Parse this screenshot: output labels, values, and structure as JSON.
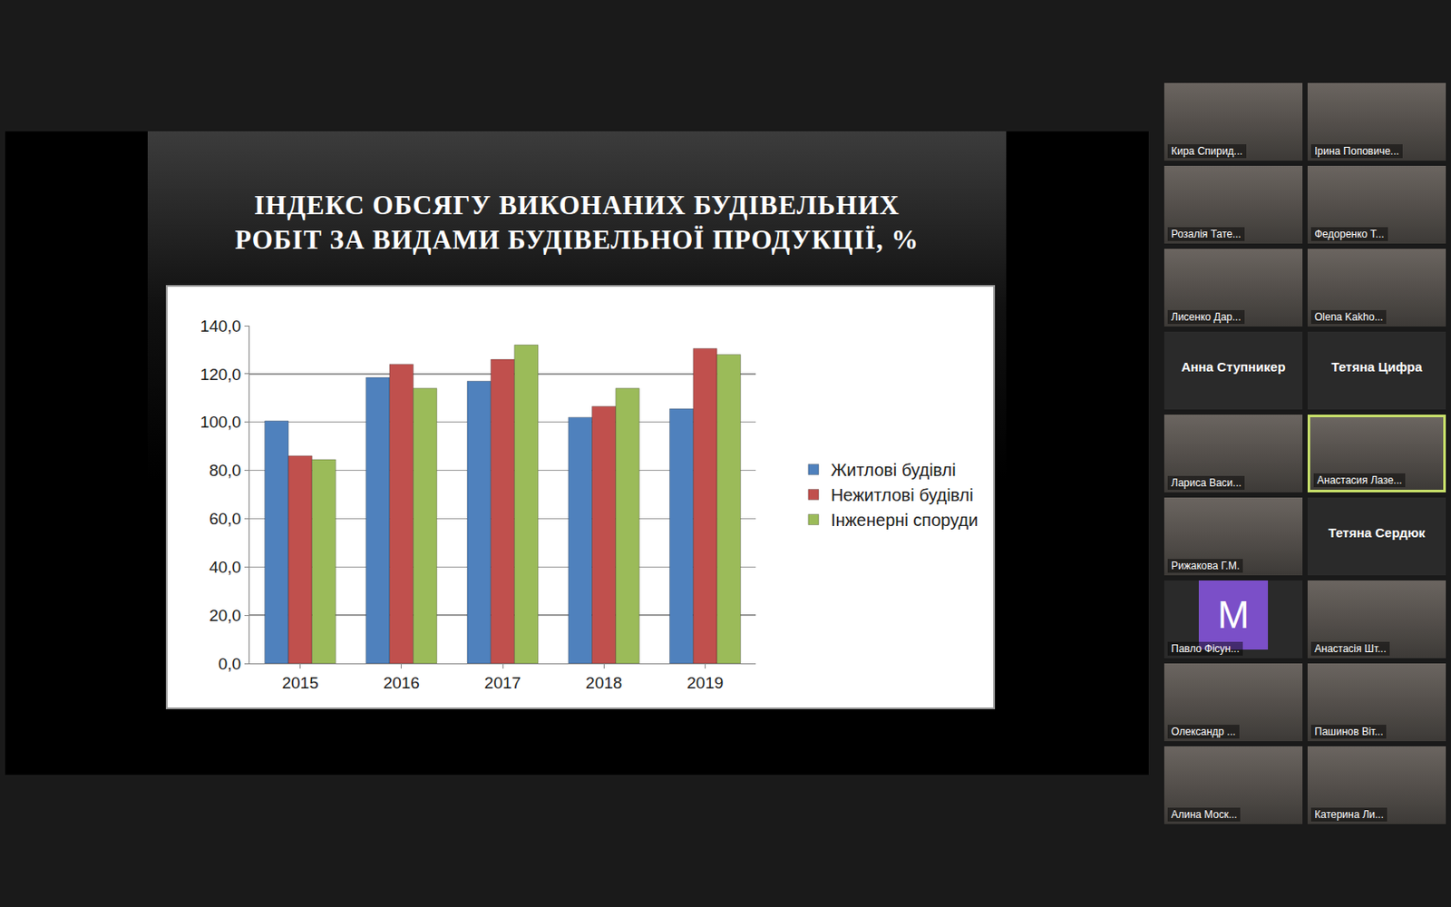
{
  "chart_data": {
    "type": "bar",
    "title": "ІНДЕКС ОБСЯГУ ВИКОНАНИХ БУДІВЕЛЬНИХ РОБІТ ЗА ВИДАМИ БУДІВЕЛЬНОЇ ПРОДУКЦІЇ, %",
    "categories": [
      "2015",
      "2016",
      "2017",
      "2018",
      "2019"
    ],
    "series": [
      {
        "name": "Житлові будівлі",
        "color": "#4f81bd",
        "values": [
          100.5,
          118.5,
          117.0,
          102.0,
          105.5
        ]
      },
      {
        "name": "Нежитлові будівлі",
        "color": "#c0504d",
        "values": [
          86.0,
          124.0,
          126.0,
          106.5,
          130.5
        ]
      },
      {
        "name": "Інженерні споруди",
        "color": "#9bbb59",
        "values": [
          84.5,
          114.0,
          132.0,
          114.0,
          128.0
        ]
      }
    ],
    "ylim": [
      0,
      140
    ],
    "yticks": [
      {
        "value": 0,
        "label": "0,0"
      },
      {
        "value": 20,
        "label": "20,0"
      },
      {
        "value": 40,
        "label": "40,0"
      },
      {
        "value": 60,
        "label": "60,0"
      },
      {
        "value": 80,
        "label": "80,0"
      },
      {
        "value": 100,
        "label": "100,0"
      },
      {
        "value": 120,
        "label": "120,0"
      },
      {
        "value": 140,
        "label": "140,0"
      }
    ],
    "grid": true,
    "legend": "right"
  },
  "participants": [
    {
      "name": "Кира Спирид...",
      "video": true
    },
    {
      "name": "Ірина Поповиче...",
      "video": true
    },
    {
      "name": "Розалія Тате...",
      "video": true
    },
    {
      "name": "Федоренко Т...",
      "video": true
    },
    {
      "name": "Лисенко Дар...",
      "video": true
    },
    {
      "name": "Olena Kakho...",
      "video": true
    },
    {
      "name": "Анна Ступникер",
      "video": false
    },
    {
      "name": "Тетяна Цифра",
      "video": false
    },
    {
      "name": "Лариса Васи...",
      "video": true
    },
    {
      "name": "Анастасия Лазе...",
      "video": true,
      "speaking": true
    },
    {
      "name": "Рижакова Г.М.",
      "video": true
    },
    {
      "name": "Тетяна Сердюк",
      "video": false
    },
    {
      "name": "Павло Фісун...",
      "video": true,
      "avatar": "M"
    },
    {
      "name": "Анастасія Шт...",
      "video": true
    },
    {
      "name": "Олександр ...",
      "video": true
    },
    {
      "name": "Пашинов Віт...",
      "video": true
    },
    {
      "name": "Алина Моск...",
      "video": true
    },
    {
      "name": "Катерина Ли...",
      "video": true
    }
  ]
}
